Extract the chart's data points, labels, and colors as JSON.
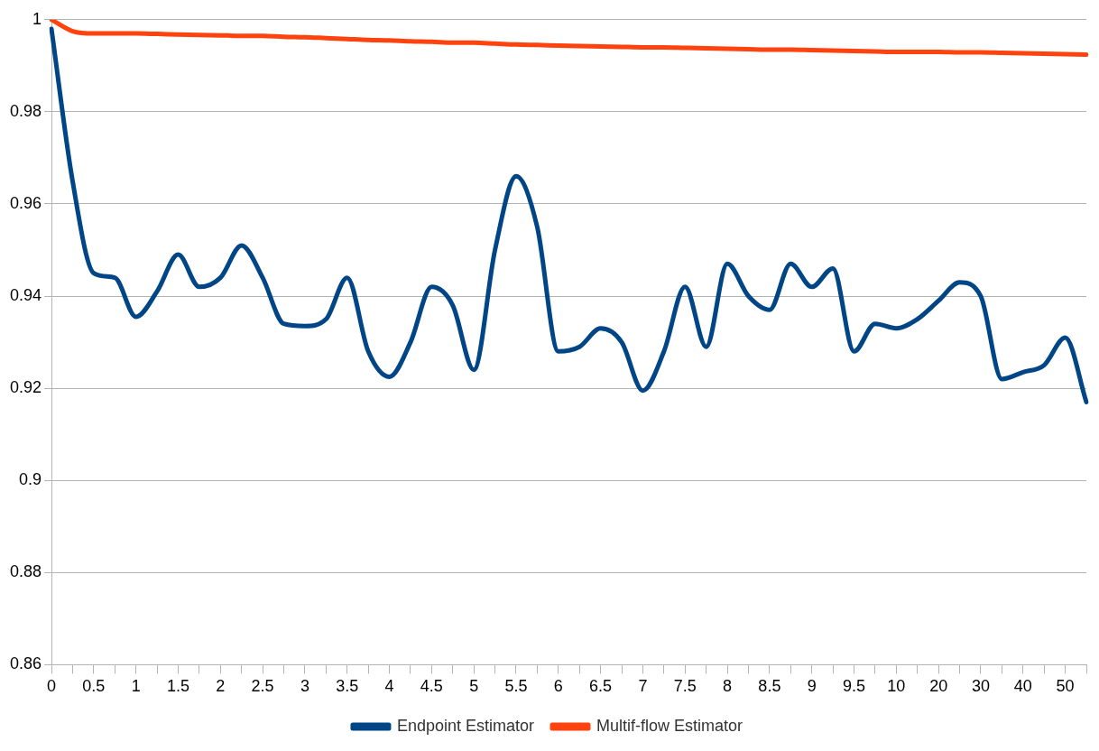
{
  "chart_data": {
    "type": "line",
    "categories": [
      "0",
      null,
      "0.5",
      null,
      "1",
      null,
      "1.5",
      null,
      "2",
      null,
      "2.5",
      null,
      "3",
      null,
      "3.5",
      null,
      "4",
      null,
      "4.5",
      null,
      "5",
      null,
      "5.5",
      null,
      "6",
      null,
      "6.5",
      null,
      "7",
      null,
      "7.5",
      null,
      "8",
      null,
      "8.5",
      null,
      "9",
      null,
      "9.5",
      null,
      "10",
      null,
      "20",
      null,
      "30",
      null,
      "40",
      null,
      "50",
      null
    ],
    "series": [
      {
        "name": "Endpoint Estimator",
        "color": "#004586",
        "values": [
          0.998,
          0.965,
          0.945,
          0.944,
          0.9355,
          0.941,
          0.949,
          0.942,
          0.944,
          0.951,
          0.944,
          0.934,
          0.9335,
          0.935,
          0.944,
          0.928,
          0.9225,
          0.93,
          0.942,
          0.938,
          0.924,
          0.95,
          0.966,
          0.955,
          0.928,
          0.929,
          0.933,
          0.93,
          0.9195,
          0.928,
          0.942,
          0.929,
          0.947,
          0.94,
          0.937,
          0.947,
          0.942,
          0.946,
          0.928,
          0.934,
          0.933,
          0.935,
          0.939,
          0.943,
          0.94,
          0.922,
          0.9235,
          0.925,
          0.931,
          0.917
        ]
      },
      {
        "name": "Multif-flow Estimator",
        "color": "#ff420e",
        "values": [
          1.0,
          0.9975,
          0.997,
          0.997,
          0.997,
          0.9969,
          0.9968,
          0.9967,
          0.9966,
          0.9965,
          0.9965,
          0.9963,
          0.9962,
          0.996,
          0.9958,
          0.9956,
          0.9955,
          0.9953,
          0.9952,
          0.995,
          0.995,
          0.9948,
          0.9946,
          0.9945,
          0.9944,
          0.9943,
          0.9942,
          0.9941,
          0.994,
          0.994,
          0.9939,
          0.9938,
          0.9937,
          0.9936,
          0.9935,
          0.9935,
          0.9934,
          0.9933,
          0.9932,
          0.9931,
          0.993,
          0.993,
          0.993,
          0.9929,
          0.9929,
          0.9928,
          0.9927,
          0.9926,
          0.9925,
          0.9924
        ]
      }
    ],
    "ylim": [
      0.86,
      1
    ],
    "yticks": [
      0.86,
      0.88,
      0.9,
      0.92,
      0.94,
      0.96,
      0.98,
      1
    ],
    "grid": "y",
    "legend": "bottom",
    "marker": "none",
    "line_style": "solid"
  }
}
